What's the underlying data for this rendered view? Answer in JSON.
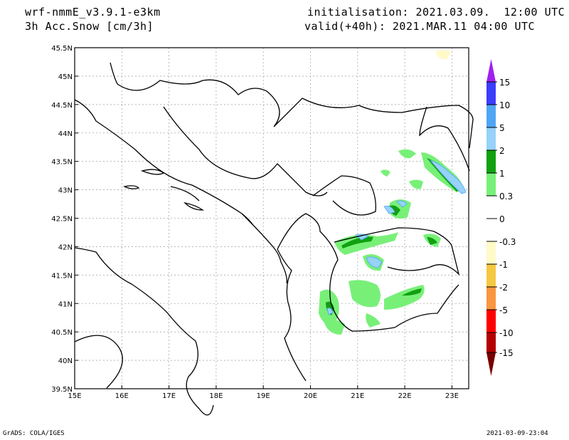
{
  "header": {
    "model": "wrf-nmmE_v3.9.1-e3km",
    "variable": "3h Acc.Snow [cm/3h]",
    "initialisation": "initialisation: 2021.03.09.  12:00 UTC",
    "valid": "valid(+40h): 2021.MAR.11 04:00 UTC"
  },
  "axes": {
    "lon_labels": [
      "15E",
      "16E",
      "17E",
      "18E",
      "19E",
      "20E",
      "21E",
      "22E",
      "23E"
    ],
    "lat_labels": [
      "45.5N",
      "45N",
      "44.5N",
      "44N",
      "43.5N",
      "43N",
      "42.5N",
      "42N",
      "41.5N",
      "41N",
      "40.5N",
      "40N",
      "39.5N"
    ]
  },
  "legend": {
    "labels": [
      "15",
      "10",
      "5",
      "2",
      "1",
      "0.3",
      "0",
      "-0.3",
      "-1",
      "-2",
      "-5",
      "-10",
      "-15"
    ],
    "colors": [
      "#a020f0",
      "#3c3cff",
      "#50a5f5",
      "#96d2fa",
      "#10a010",
      "#78f078",
      "#ffffff",
      "#fffac8",
      "#f5c842",
      "#fa9640",
      "#ff0000",
      "#b40000",
      "#780000"
    ]
  },
  "footer": {
    "left": "GrADS: COLA/IGES",
    "right": "2021-03-09-23:04"
  }
}
